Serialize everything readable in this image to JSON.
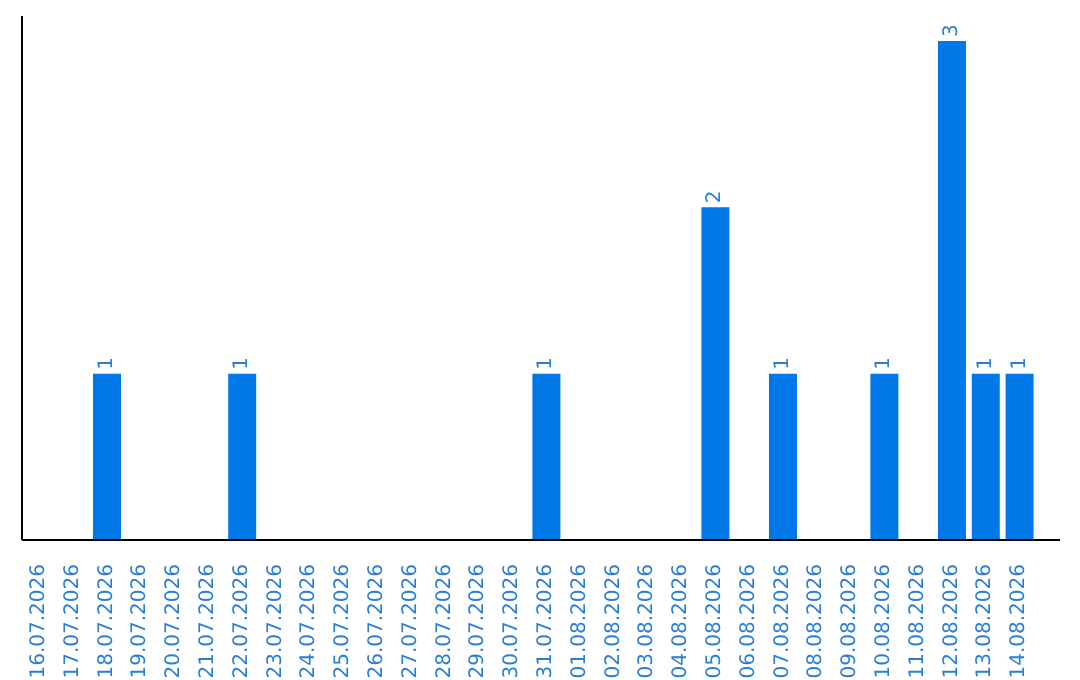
{
  "chart_data": {
    "type": "bar",
    "categories": [
      "16.07.2026",
      "17.07.2026",
      "18.07.2026",
      "19.07.2026",
      "20.07.2026",
      "21.07.2026",
      "22.07.2026",
      "23.07.2026",
      "24.07.2026",
      "25.07.2026",
      "26.07.2026",
      "27.07.2026",
      "28.07.2026",
      "29.07.2026",
      "30.07.2026",
      "31.07.2026",
      "01.08.2026",
      "02.08.2026",
      "03.08.2026",
      "04.08.2026",
      "05.08.2026",
      "06.08.2026",
      "07.08.2026",
      "08.08.2026",
      "09.08.2026",
      "10.08.2026",
      "11.08.2026",
      "12.08.2026",
      "13.08.2026",
      "14.08.2026"
    ],
    "values": [
      0,
      0,
      1,
      0,
      0,
      0,
      1,
      0,
      0,
      0,
      0,
      0,
      0,
      0,
      0,
      1,
      0,
      0,
      0,
      0,
      2,
      0,
      1,
      0,
      0,
      1,
      0,
      3,
      1,
      1
    ],
    "value_labels": [
      null,
      null,
      "1",
      null,
      null,
      null,
      "1",
      null,
      null,
      null,
      null,
      null,
      null,
      null,
      null,
      "1",
      null,
      null,
      null,
      null,
      "2",
      null,
      "1",
      null,
      null,
      "1",
      null,
      "3",
      "1",
      "1"
    ],
    "color": "#0078e7",
    "tick_labels": "x"
  }
}
